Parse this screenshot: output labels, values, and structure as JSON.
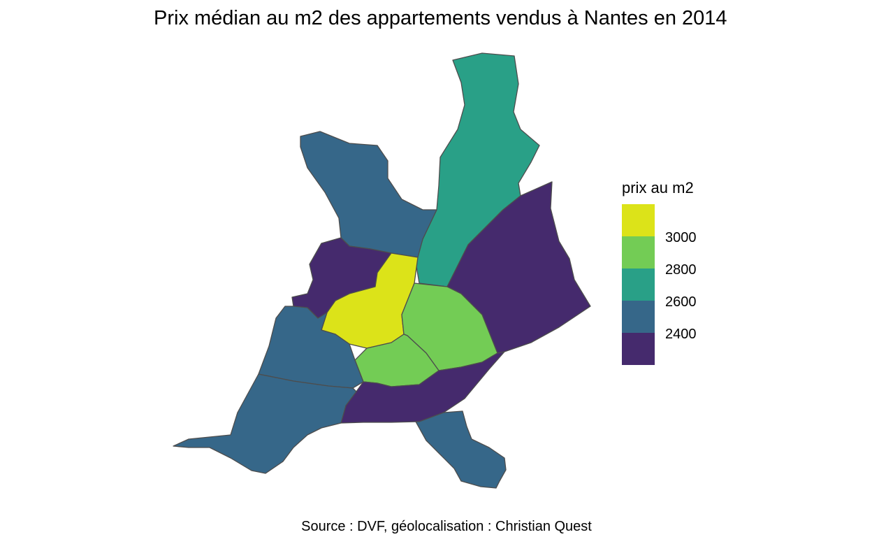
{
  "title": "Prix médian au m2 des appartements vendus à Nantes en 2014",
  "caption": "Source : DVF, géolocalisation : Christian Quest",
  "legend": {
    "title": "prix au m2",
    "bins": [
      {
        "color": "#DCE319"
      },
      {
        "color": "#73CC55",
        "label": "3000"
      },
      {
        "color": "#29A087",
        "label": "2800"
      },
      {
        "color": "#366789",
        "label": "2600"
      },
      {
        "color": "#452A6D",
        "label": "2400"
      }
    ]
  },
  "districts": [
    {
      "id": "nord",
      "color": "#29A087"
    },
    {
      "id": "erdre-ouest",
      "color": "#366789"
    },
    {
      "id": "est",
      "color": "#452A6D"
    },
    {
      "id": "bellevue-nord",
      "color": "#452A6D"
    },
    {
      "id": "centre-ville",
      "color": "#DCE319"
    },
    {
      "id": "saint-donatien",
      "color": "#73CC55"
    },
    {
      "id": "hauts-paves",
      "color": "#73CC55"
    },
    {
      "id": "dervallieres",
      "color": "#366789"
    },
    {
      "id": "ile-de-nantes",
      "color": "#452A6D"
    },
    {
      "id": "sud-ouest",
      "color": "#366789"
    },
    {
      "id": "sud",
      "color": "#366789"
    }
  ]
}
